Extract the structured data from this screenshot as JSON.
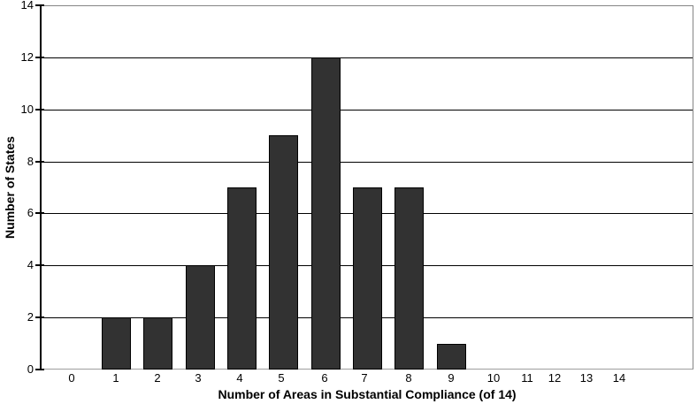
{
  "chart_data": {
    "type": "bar",
    "title": "",
    "categories": [
      "0",
      "1",
      "2",
      "3",
      "4",
      "5",
      "6",
      "7",
      "8",
      "9",
      "10",
      "11",
      "12",
      "13",
      "14"
    ],
    "values": [
      0,
      2,
      2,
      4,
      7,
      9,
      12,
      7,
      7,
      1,
      0,
      0,
      0,
      0,
      0
    ],
    "xlabel": "Number of Areas in Substantial Compliance (of 14)",
    "ylabel": "Number of States",
    "ylim": [
      0,
      14
    ],
    "yticks": [
      0,
      2,
      4,
      6,
      8,
      10,
      12,
      14
    ],
    "grid": "horizontal-only",
    "legend": false,
    "colors": {
      "bar_fill": "#323232",
      "bar_border": "#000000",
      "gridline": "#000000",
      "axis_line": "#000000",
      "plot_border": "#858585",
      "background": "#ffffff",
      "text": "#000000"
    }
  }
}
